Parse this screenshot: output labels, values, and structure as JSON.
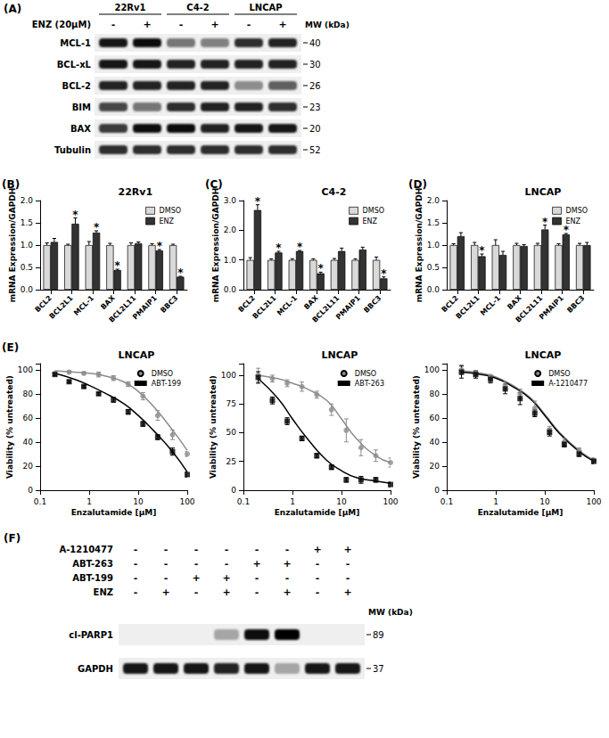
{
  "chart_data": [
    {
      "panel_label": "(B)",
      "type": "bar",
      "title": "22Rv1",
      "y_label": "mRNA Expression/GAPDH",
      "categories": [
        "BCL2",
        "BCL2L1",
        "MCL-1",
        "BAX",
        "BCL2L11",
        "PMAIP1",
        "BBC3"
      ],
      "ylim": [
        0,
        2
      ],
      "yticks": [
        {
          "value": 0,
          "label": "0.0"
        },
        0.5,
        {
          "value": 1,
          "label": "1.0"
        },
        1.5,
        {
          "value": 2,
          "label": "2.0"
        }
      ],
      "grid": false,
      "legend": "upper right",
      "series": [
        {
          "name": "DMSO",
          "color": "#d9d9d9",
          "values": [
            1,
            1,
            1,
            1,
            1,
            1,
            1
          ],
          "errors": [
            0.05,
            0.02,
            0.08,
            0.04,
            0.05,
            0.03,
            0.02
          ],
          "annotations": [
            null,
            null,
            null,
            null,
            null,
            null,
            null
          ]
        },
        {
          "name": "ENZ",
          "color": "#333333",
          "values": [
            1.07,
            1.48,
            1.28,
            0.44,
            1.04,
            0.88,
            0.29
          ],
          "errors": [
            0.08,
            0.13,
            0.04,
            0.02,
            0.03,
            0.02,
            0.01
          ],
          "annotations": [
            null,
            "*",
            "*",
            "*",
            null,
            "*",
            "*"
          ]
        }
      ]
    },
    {
      "panel_label": "(C)",
      "type": "bar",
      "title": "C4-2",
      "y_label": "mRNA Expression/GAPDH",
      "categories": [
        "BCL2",
        "BCL2L1",
        "MCL-1",
        "BAX",
        "BCL2L11",
        "PMAIP1",
        "BBC3"
      ],
      "ylim": [
        0,
        3
      ],
      "yticks": [
        {
          "value": 0,
          "label": "0.0"
        },
        {
          "value": 1,
          "label": "1.0"
        },
        {
          "value": 2,
          "label": "2.0"
        },
        {
          "value": 3,
          "label": "3.0"
        }
      ],
      "grid": false,
      "legend": "upper right",
      "series": [
        {
          "name": "DMSO",
          "color": "#d9d9d9",
          "values": [
            1,
            1,
            1,
            1,
            1,
            1,
            1
          ],
          "errors": [
            0.08,
            0.04,
            0.04,
            0.04,
            0.05,
            0.04,
            0.1
          ],
          "annotations": [
            null,
            null,
            null,
            null,
            null,
            null,
            null
          ]
        },
        {
          "name": "ENZ",
          "color": "#333333",
          "values": [
            2.68,
            1.25,
            1.3,
            0.55,
            1.3,
            1.35,
            0.38
          ],
          "errors": [
            0.18,
            0.04,
            0.02,
            0.04,
            0.1,
            0.08,
            0.05
          ],
          "annotations": [
            "*",
            "*",
            "*",
            "*",
            null,
            null,
            "*"
          ]
        }
      ]
    },
    {
      "panel_label": "(D)",
      "type": "bar",
      "title": "LNCAP",
      "y_label": "mRNA Expression/GAPDH",
      "categories": [
        "BCL2",
        "BCL2L1",
        "MCL-1",
        "BAX",
        "BCL2L11",
        "PMAIP1",
        "BBC3"
      ],
      "ylim": [
        0,
        2
      ],
      "yticks": [
        {
          "value": 0,
          "label": "0.0"
        },
        0.5,
        {
          "value": 1,
          "label": "1.0"
        },
        1.5,
        {
          "value": 2,
          "label": "2.0"
        }
      ],
      "grid": false,
      "legend": "upper right",
      "series": [
        {
          "name": "DMSO",
          "color": "#d9d9d9",
          "values": [
            1,
            1,
            1,
            1,
            1,
            1,
            1
          ],
          "errors": [
            0.03,
            0.06,
            0.12,
            0.04,
            0.04,
            0.03,
            0.04
          ],
          "annotations": [
            null,
            null,
            null,
            null,
            null,
            null,
            null
          ]
        },
        {
          "name": "ENZ",
          "color": "#333333",
          "values": [
            1.2,
            0.75,
            0.78,
            0.98,
            1.35,
            1.24,
            1.0
          ],
          "errors": [
            0.08,
            0.05,
            0.08,
            0.03,
            0.1,
            0.02,
            0.06
          ],
          "annotations": [
            null,
            "*",
            null,
            null,
            "*",
            "*",
            null
          ]
        }
      ]
    },
    {
      "panel_label": "(E)",
      "type": "scatter",
      "title": "LNCAP",
      "x_label": "Enzalutamide [μM]",
      "y_label": "Viability (% untreated)",
      "log": "x",
      "xlim": [
        0.1,
        100
      ],
      "xticks": [
        0.1,
        1,
        10,
        100
      ],
      "ylim": [
        0,
        105
      ],
      "yticks": [
        0,
        20,
        40,
        60,
        80,
        100
      ],
      "grid": false,
      "legend": "upper right",
      "x": [
        0.2,
        0.39,
        0.78,
        1.56,
        3.13,
        6.25,
        12.5,
        25,
        50,
        100
      ],
      "fit_x": [
        0.2,
        0.5,
        1,
        2,
        5,
        10,
        20,
        50,
        100
      ],
      "series": [
        {
          "name": "DMSO",
          "color": "#8c8c8c",
          "marker": "circle",
          "values": [
            97,
            98,
            97,
            96,
            93,
            88,
            78,
            62,
            46,
            30
          ],
          "errors": [
            1,
            1,
            1,
            2,
            2,
            2,
            3,
            4,
            4,
            2
          ],
          "fit_values": [
            99,
            98,
            97,
            95,
            90,
            82,
            70,
            50,
            33
          ]
        },
        {
          "name": "ABT-199",
          "color": "#000000",
          "marker": "square",
          "values": [
            96,
            90,
            86,
            80,
            75,
            65,
            55,
            44,
            32,
            13
          ],
          "errors": [
            1,
            1,
            1,
            1,
            2,
            2,
            2,
            2,
            3,
            2
          ],
          "fit_values": [
            97,
            92,
            87,
            81,
            72,
            62,
            50,
            32,
            15
          ]
        }
      ]
    },
    {
      "type": "scatter",
      "title": "LNCAP",
      "x_label": "Enzalutamide [μM]",
      "y_label": "Viability (% untreated)",
      "log": "x",
      "xlim": [
        0.1,
        100
      ],
      "xticks": [
        0.1,
        1,
        10,
        100
      ],
      "ylim": [
        0,
        110
      ],
      "yticks": [
        0,
        25,
        50,
        75,
        100
      ],
      "grid": false,
      "legend": "upper right",
      "x": [
        0.2,
        0.39,
        0.78,
        1.56,
        3.13,
        6.25,
        12.5,
        25,
        50,
        100
      ],
      "fit_x": [
        0.2,
        0.5,
        1,
        2,
        5,
        10,
        20,
        50,
        100
      ],
      "series": [
        {
          "name": "DMSO",
          "color": "#8c8c8c",
          "marker": "circle",
          "values": [
            100,
            97,
            93,
            90,
            83,
            70,
            52,
            37,
            30,
            24
          ],
          "errors": [
            6,
            3,
            3,
            4,
            3,
            5,
            10,
            7,
            5,
            4
          ],
          "fit_values": [
            100,
            97,
            93,
            88,
            78,
            62,
            45,
            30,
            24
          ]
        },
        {
          "name": "ABT-263",
          "color": "#000000",
          "marker": "square",
          "values": [
            98,
            78,
            60,
            45,
            30,
            20,
            9,
            9,
            9,
            5
          ],
          "errors": [
            5,
            3,
            3,
            2,
            2,
            2,
            2,
            3,
            2,
            2
          ],
          "fit_values": [
            97,
            80,
            62,
            45,
            26,
            17,
            11,
            8,
            6
          ]
        }
      ]
    },
    {
      "type": "scatter",
      "title": "LNCAP",
      "x_label": "Enzalutamide [μM]",
      "y_label": "Viability (% untreated)",
      "log": "x",
      "xlim": [
        0.1,
        100
      ],
      "xticks": [
        0.1,
        1,
        10,
        100
      ],
      "ylim": [
        0,
        105
      ],
      "yticks": [
        0,
        20,
        40,
        60,
        80,
        100
      ],
      "grid": false,
      "legend": "upper right",
      "x": [
        0.2,
        0.39,
        0.78,
        1.56,
        3.13,
        6.25,
        12.5,
        25,
        50,
        100
      ],
      "fit_x": [
        0.2,
        0.5,
        1,
        2,
        5,
        10,
        20,
        50,
        100
      ],
      "series": [
        {
          "name": "DMSO",
          "color": "#8c8c8c",
          "marker": "circle",
          "values": [
            100,
            97,
            94,
            87,
            80,
            68,
            50,
            40,
            33,
            25
          ],
          "errors": [
            4,
            2,
            2,
            3,
            4,
            6,
            3,
            3,
            2,
            2
          ],
          "fit_values": [
            99,
            97,
            94,
            88,
            77,
            63,
            48,
            33,
            25
          ]
        },
        {
          "name": "A-1210477",
          "color": "#000000",
          "marker": "square",
          "values": [
            98,
            96,
            92,
            84,
            76,
            64,
            48,
            38,
            30,
            24
          ],
          "errors": [
            5,
            3,
            3,
            4,
            5,
            3,
            3,
            2,
            2,
            2
          ],
          "fit_values": [
            98,
            96,
            93,
            87,
            76,
            62,
            47,
            32,
            24
          ]
        }
      ]
    }
  ],
  "blots": [
    {
      "panel_label": "(A)",
      "treatment": "ENZ (20μM)",
      "groups": [
        "22Rv1",
        "C4-2",
        "LNCAP"
      ],
      "lanes": [
        "-",
        "+",
        "-",
        "+",
        "-",
        "+"
      ],
      "mw_label": "MW (kDa)",
      "rows": [
        {
          "label": "MCL-1",
          "mw": 40,
          "intensity": [
            0.9,
            0.95,
            0.5,
            0.45,
            0.8,
            0.85
          ]
        },
        {
          "label": "BCL-xL",
          "mw": 30,
          "intensity": [
            0.9,
            0.9,
            0.85,
            0.85,
            0.85,
            0.85
          ]
        },
        {
          "label": "BCL-2",
          "mw": 26,
          "intensity": [
            0.85,
            0.85,
            0.85,
            0.85,
            0.4,
            0.6
          ]
        },
        {
          "label": "BIM",
          "mw": 23,
          "intensity": [
            0.7,
            0.5,
            0.8,
            0.85,
            0.85,
            0.8
          ]
        },
        {
          "label": "BAX",
          "mw": 20,
          "intensity": [
            0.75,
            0.95,
            0.95,
            0.85,
            0.9,
            0.9
          ]
        },
        {
          "label": "Tubulin",
          "mw": 52,
          "intensity": [
            0.8,
            0.8,
            0.8,
            0.8,
            0.8,
            0.8
          ]
        }
      ]
    },
    {
      "panel_label": "(F)",
      "mw_label": "MW (kDa)",
      "conditions": [
        {
          "label": "A-1210477",
          "lanes": [
            "-",
            "-",
            "-",
            "-",
            "-",
            "-",
            "+",
            "+"
          ]
        },
        {
          "label": "ABT-263",
          "lanes": [
            "-",
            "-",
            "-",
            "-",
            "+",
            "+",
            "-",
            "-"
          ]
        },
        {
          "label": "ABT-199",
          "lanes": [
            "-",
            "-",
            "+",
            "+",
            "-",
            "-",
            "-",
            "-"
          ]
        },
        {
          "label": "ENZ",
          "lanes": [
            "-",
            "+",
            "-",
            "+",
            "-",
            "+",
            "-",
            "+"
          ]
        }
      ],
      "rows": [
        {
          "label": "cl-PARP1",
          "mw": 89,
          "intensity": [
            0,
            0,
            0,
            0.3,
            0.95,
            1,
            0,
            0
          ]
        },
        {
          "label": "GAPDH",
          "mw": 37,
          "intensity": [
            0.9,
            0.9,
            0.9,
            0.85,
            0.9,
            0.3,
            0.9,
            0.9
          ]
        }
      ]
    }
  ]
}
